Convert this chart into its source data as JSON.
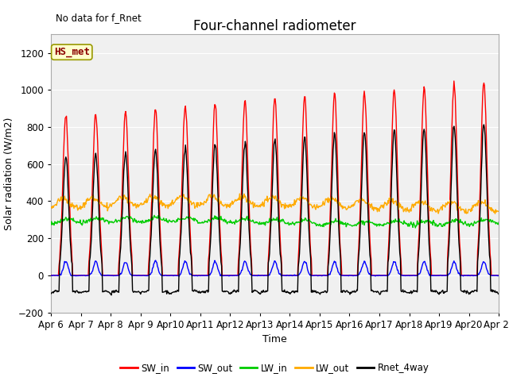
{
  "title": "Four-channel radiometer",
  "top_left_text": "No data for f_Rnet",
  "annotation": "HS_met",
  "xlabel": "Time",
  "ylabel": "Solar radiation (W/m2)",
  "ylim": [
    -200,
    1300
  ],
  "yticks": [
    -200,
    0,
    200,
    400,
    600,
    800,
    1000,
    1200
  ],
  "x_tick_days": [
    6,
    7,
    8,
    9,
    10,
    11,
    12,
    13,
    14,
    15,
    16,
    17,
    18,
    19,
    20,
    21
  ],
  "x_tick_labels": [
    "Apr 6",
    "Apr 7",
    "Apr 8",
    "Apr 9",
    "Apr10",
    "Apr11",
    "Apr12",
    "Apr13",
    "Apr14",
    "Apr15",
    "Apr16",
    "Apr17",
    "Apr18",
    "Apr19",
    "Apr20",
    "Apr 21"
  ],
  "legend_entries": [
    {
      "label": "SW_in",
      "color": "#ff0000"
    },
    {
      "label": "SW_out",
      "color": "#0000ff"
    },
    {
      "label": "LW_in",
      "color": "#00cc00"
    },
    {
      "label": "LW_out",
      "color": "#ffaa00"
    },
    {
      "label": "Rnet_4way",
      "color": "#000000"
    }
  ],
  "plot_bg_color": "#f0f0f0",
  "grid_color": "#ffffff",
  "title_fontsize": 12,
  "axis_fontsize": 9,
  "tick_fontsize": 8.5,
  "annotation_fontsize": 9,
  "annotation_color": "#8B0000",
  "annotation_bg": "#ffffcc",
  "annotation_edge": "#999900"
}
